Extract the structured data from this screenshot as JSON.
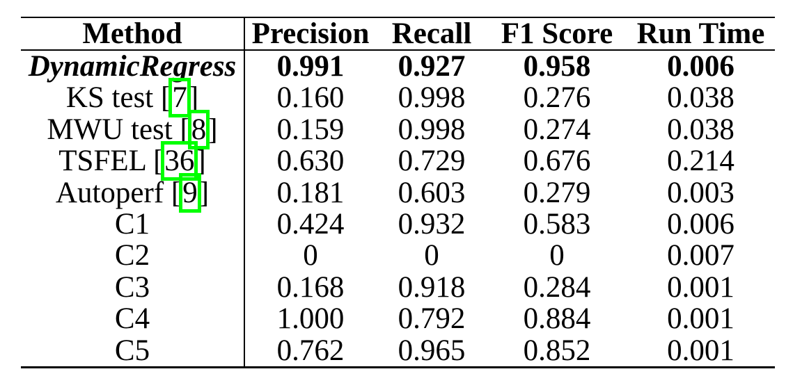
{
  "table": {
    "columns": [
      "Method",
      "Precision",
      "Recall",
      "F1 Score",
      "Run Time"
    ],
    "cite_open": "[",
    "cite_close": "]",
    "link_box_color": "#00ff00",
    "text_color": "#000000",
    "rows": [
      {
        "method": "DynamicRegress",
        "precision": "0.991",
        "recall": "0.927",
        "f1": "0.958",
        "run_time": "0.006",
        "emphasis": "bold-italic"
      },
      {
        "method": "KS test",
        "cite": "7",
        "precision": "0.160",
        "recall": "0.998",
        "f1": "0.276",
        "run_time": "0.038"
      },
      {
        "method": "MWU test",
        "cite": "8",
        "precision": "0.159",
        "recall": "0.998",
        "f1": "0.274",
        "run_time": "0.038"
      },
      {
        "method": "TSFEL",
        "cite": "36",
        "precision": "0.630",
        "recall": "0.729",
        "f1": "0.676",
        "run_time": "0.214"
      },
      {
        "method": "Autoperf",
        "cite": "9",
        "precision": "0.181",
        "recall": "0.603",
        "f1": "0.279",
        "run_time": "0.003"
      },
      {
        "method": "C1",
        "precision": "0.424",
        "recall": "0.932",
        "f1": "0.583",
        "run_time": "0.006"
      },
      {
        "method": "C2",
        "precision": "0",
        "recall": "0",
        "f1": "0",
        "run_time": "0.007"
      },
      {
        "method": "C3",
        "precision": "0.168",
        "recall": "0.918",
        "f1": "0.284",
        "run_time": "0.001"
      },
      {
        "method": "C4",
        "precision": "1.000",
        "recall": "0.792",
        "f1": "0.884",
        "run_time": "0.001"
      },
      {
        "method": "C5",
        "precision": "0.762",
        "recall": "0.965",
        "f1": "0.852",
        "run_time": "0.001"
      }
    ]
  }
}
